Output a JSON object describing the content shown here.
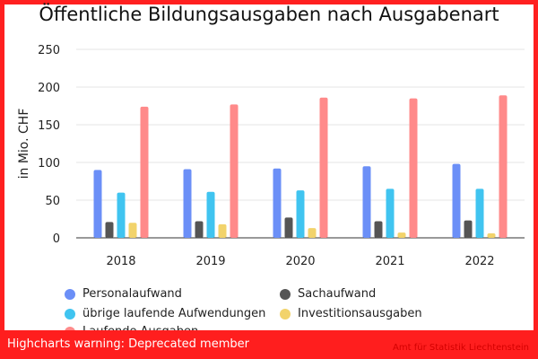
{
  "chart_data": {
    "type": "bar",
    "title": "Öffentliche Bildungsausgaben nach Ausgabenart",
    "ylabel": "in Mio. CHF",
    "xlabel": "",
    "ylim": [
      0,
      250
    ],
    "yticks": [
      0,
      50,
      100,
      150,
      200,
      250
    ],
    "categories": [
      "2018",
      "2019",
      "2020",
      "2021",
      "2022"
    ],
    "series": [
      {
        "name": "Personalaufwand",
        "color": "#6b8ff7",
        "values": [
          90,
          91,
          92,
          95,
          98
        ]
      },
      {
        "name": "Sachaufwand",
        "color": "#555555",
        "values": [
          21,
          22,
          27,
          22,
          23
        ]
      },
      {
        "name": "übrige laufende Aufwendungen",
        "color": "#40c4f0",
        "values": [
          60,
          61,
          63,
          65,
          65
        ]
      },
      {
        "name": "Investitionsausgaben",
        "color": "#f2d36b",
        "values": [
          20,
          18,
          13,
          7,
          6
        ]
      },
      {
        "name": "Laufende Ausgaben",
        "color": "#ff8a8a",
        "values": [
          174,
          177,
          186,
          185,
          189
        ]
      }
    ],
    "grid": true,
    "legend_position": "bottom"
  },
  "legend": {
    "items": [
      "Personalaufwand",
      "Sachaufwand",
      "übrige laufende Aufwendungen",
      "Investitionsausgaben",
      "Laufende Ausgaben"
    ]
  },
  "warning": {
    "text": "Highcharts warning: Deprecated member"
  },
  "credits": {
    "text": "Amt für Statistik Liechtenstein"
  }
}
